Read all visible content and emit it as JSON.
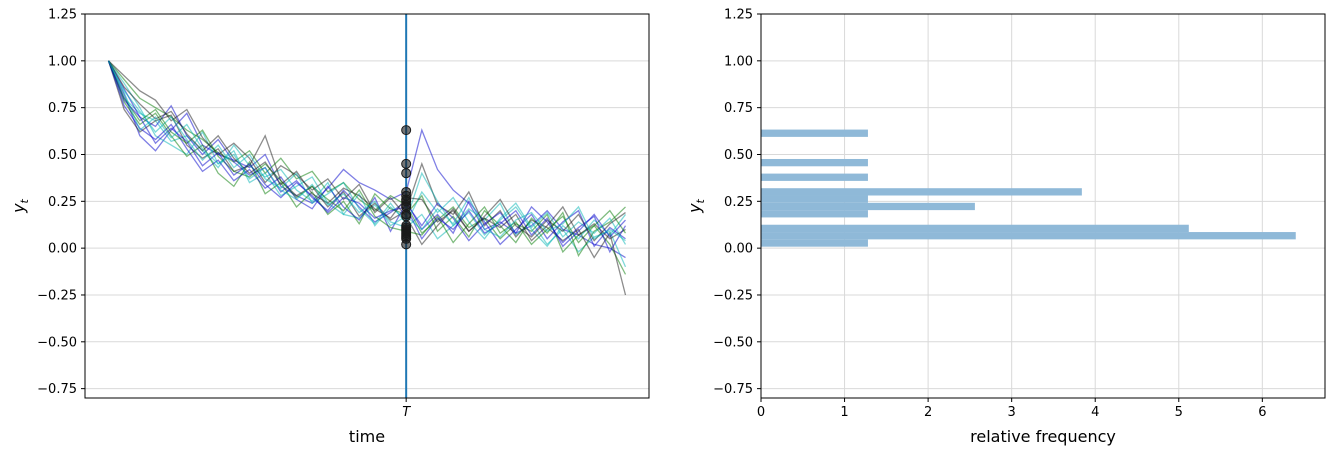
{
  "chart_data": [
    {
      "type": "line",
      "xlabel": "time",
      "ylabel": "y",
      "ylabel_subscript": "t",
      "ylim": [
        -0.8,
        1.25
      ],
      "yticks": [
        -0.75,
        -0.5,
        -0.25,
        0.0,
        0.25,
        0.5,
        0.75,
        1.0,
        1.25
      ],
      "ytick_labels": [
        "−0.75",
        "−0.50",
        "−0.25",
        "0.00",
        "0.25",
        "0.50",
        "0.75",
        "1.00",
        "1.25"
      ],
      "xlim": [
        -1.5,
        34.5
      ],
      "xtick_label": "T",
      "T_index": 19,
      "vline_color": "#1f77b4",
      "grid": "horizontal",
      "series_colors": [
        "#0000cc",
        "#00b3b3",
        "#007a00",
        "#1a1a1a"
      ],
      "series": [
        {
          "values": [
            1.0,
            0.82,
            0.6,
            0.52,
            0.63,
            0.72,
            0.55,
            0.5,
            0.47,
            0.43,
            0.5,
            0.33,
            0.28,
            0.24,
            0.32,
            0.42,
            0.35,
            0.31,
            0.26,
            0.3,
            0.63,
            0.42,
            0.31,
            0.24,
            0.1,
            0.14,
            0.08,
            0.12,
            0.2,
            0.1,
            0.07,
            0.02,
            0.0,
            -0.05
          ]
        },
        {
          "values": [
            1.0,
            0.8,
            0.72,
            0.68,
            0.57,
            0.6,
            0.52,
            0.43,
            0.55,
            0.44,
            0.38,
            0.42,
            0.31,
            0.25,
            0.35,
            0.18,
            0.16,
            0.23,
            0.14,
            0.11,
            0.18,
            0.05,
            0.12,
            0.21,
            0.15,
            0.24,
            0.07,
            0.14,
            0.02,
            0.1,
            -0.02,
            0.06,
            0.09,
            -0.1
          ]
        },
        {
          "values": [
            1.0,
            0.9,
            0.8,
            0.75,
            0.7,
            0.63,
            0.58,
            0.51,
            0.46,
            0.52,
            0.4,
            0.48,
            0.37,
            0.41,
            0.3,
            0.35,
            0.26,
            0.2,
            0.28,
            0.23,
            0.08,
            0.15,
            0.22,
            0.11,
            0.16,
            0.05,
            0.13,
            0.09,
            0.18,
            -0.02,
            0.07,
            0.12,
            0.02,
            -0.14
          ]
        },
        {
          "values": [
            1.0,
            0.74,
            0.62,
            0.68,
            0.71,
            0.55,
            0.48,
            0.53,
            0.41,
            0.44,
            0.6,
            0.36,
            0.28,
            0.33,
            0.22,
            0.3,
            0.17,
            0.24,
            0.15,
            0.2,
            0.45,
            0.23,
            0.18,
            0.3,
            0.12,
            0.2,
            0.06,
            0.15,
            0.11,
            0.04,
            0.1,
            -0.05,
            0.08,
            -0.25
          ]
        },
        {
          "values": [
            1.0,
            0.85,
            0.7,
            0.65,
            0.76,
            0.6,
            0.5,
            0.58,
            0.46,
            0.39,
            0.43,
            0.3,
            0.36,
            0.27,
            0.2,
            0.31,
            0.22,
            0.14,
            0.19,
            0.25,
            0.1,
            0.18,
            0.08,
            0.25,
            0.14,
            0.02,
            0.1,
            0.18,
            0.05,
            0.14,
            0.2,
            0.01,
            0.11,
            0.05
          ]
        },
        {
          "values": [
            1.0,
            0.88,
            0.75,
            0.6,
            0.55,
            0.5,
            0.62,
            0.45,
            0.52,
            0.35,
            0.4,
            0.28,
            0.33,
            0.38,
            0.24,
            0.18,
            0.29,
            0.12,
            0.22,
            0.15,
            0.4,
            0.25,
            0.12,
            0.19,
            0.07,
            0.15,
            0.22,
            0.1,
            0.01,
            0.12,
            0.05,
            0.15,
            0.07,
            0.18
          ]
        },
        {
          "values": [
            1.0,
            0.78,
            0.66,
            0.72,
            0.6,
            0.49,
            0.55,
            0.4,
            0.33,
            0.46,
            0.29,
            0.35,
            0.22,
            0.3,
            0.18,
            0.25,
            0.13,
            0.29,
            0.21,
            0.18,
            0.28,
            0.09,
            0.17,
            0.06,
            0.2,
            0.12,
            0.03,
            0.16,
            0.08,
            0.19,
            -0.04,
            0.09,
            0.14,
            0.22
          ]
        },
        {
          "values": [
            1.0,
            0.92,
            0.84,
            0.79,
            0.68,
            0.74,
            0.59,
            0.5,
            0.56,
            0.48,
            0.35,
            0.44,
            0.39,
            0.31,
            0.37,
            0.26,
            0.34,
            0.19,
            0.27,
            0.17,
            0.02,
            0.12,
            0.21,
            0.09,
            0.16,
            0.11,
            0.18,
            0.04,
            0.12,
            0.22,
            0.07,
            0.13,
            0.05,
            0.1
          ]
        },
        {
          "values": [
            1.0,
            0.76,
            0.64,
            0.58,
            0.66,
            0.53,
            0.41,
            0.47,
            0.36,
            0.42,
            0.32,
            0.38,
            0.26,
            0.21,
            0.33,
            0.22,
            0.15,
            0.27,
            0.09,
            0.24,
            0.12,
            0.24,
            0.16,
            0.04,
            0.13,
            0.19,
            0.08,
            0.22,
            0.14,
            0.03,
            0.11,
            0.17,
            -0.02,
            0.12
          ]
        },
        {
          "values": [
            1.0,
            0.84,
            0.73,
            0.62,
            0.7,
            0.58,
            0.47,
            0.55,
            0.43,
            0.5,
            0.37,
            0.32,
            0.4,
            0.24,
            0.29,
            0.35,
            0.21,
            0.13,
            0.24,
            0.13,
            0.3,
            0.19,
            0.27,
            0.14,
            0.05,
            0.16,
            0.24,
            0.11,
            0.19,
            0.06,
            0.14,
            0.08,
            0.16,
            0.02
          ]
        },
        {
          "values": [
            1.0,
            0.8,
            0.68,
            0.74,
            0.62,
            0.56,
            0.63,
            0.49,
            0.41,
            0.38,
            0.45,
            0.36,
            0.27,
            0.33,
            0.26,
            0.2,
            0.31,
            0.17,
            0.11,
            0.09,
            0.07,
            0.17,
            0.03,
            0.13,
            0.22,
            0.08,
            0.14,
            0.02,
            0.1,
            0.17,
            0.03,
            0.12,
            0.2,
            0.08
          ]
        },
        {
          "values": [
            1.0,
            0.86,
            0.77,
            0.69,
            0.73,
            0.61,
            0.52,
            0.6,
            0.48,
            0.4,
            0.46,
            0.34,
            0.41,
            0.29,
            0.24,
            0.32,
            0.28,
            0.21,
            0.16,
            0.27,
            0.26,
            0.14,
            0.2,
            0.09,
            0.17,
            0.26,
            0.12,
            0.06,
            0.15,
            0.09,
            0.18,
            0.04,
            0.13,
            0.19
          ]
        },
        {
          "values": [
            1.0,
            0.79,
            0.7,
            0.56,
            0.64,
            0.57,
            0.44,
            0.51,
            0.39,
            0.45,
            0.34,
            0.27,
            0.35,
            0.28,
            0.19,
            0.27,
            0.24,
            0.16,
            0.2,
            0.22,
            0.05,
            0.16,
            0.1,
            0.2,
            0.08,
            0.13,
            0.2,
            0.07,
            0.16,
            0.01,
            0.09,
            0.18,
            0.06,
            0.15
          ]
        },
        {
          "values": [
            1.0,
            0.83,
            0.63,
            0.7,
            0.59,
            0.66,
            0.53,
            0.45,
            0.5,
            0.37,
            0.43,
            0.31,
            0.26,
            0.34,
            0.23,
            0.29,
            0.19,
            0.25,
            0.12,
            0.17,
            0.1,
            0.21,
            0.13,
            0.27,
            0.1,
            0.06,
            0.15,
            0.19,
            0.09,
            0.13,
            0.22,
            0.05,
            0.1,
            0.04
          ]
        }
      ],
      "markers_at_T": [
        0.63,
        0.45,
        0.4,
        0.3,
        0.28,
        0.26,
        0.25,
        0.23,
        0.22,
        0.18,
        0.17,
        0.12,
        0.11,
        0.1,
        0.09,
        0.08,
        0.07,
        0.06,
        0.05,
        0.02
      ],
      "marker_color": "#1a1a1a"
    },
    {
      "type": "bar",
      "orientation": "horizontal",
      "xlabel": "relative frequency",
      "ylabel": "y",
      "ylabel_subscript": "t",
      "ylim": [
        -0.8,
        1.25
      ],
      "yticks": [
        -0.75,
        -0.5,
        -0.25,
        0.0,
        0.25,
        0.5,
        0.75,
        1.0,
        1.25
      ],
      "ytick_labels": [
        "−0.75",
        "−0.50",
        "−0.25",
        "0.00",
        "0.25",
        "0.50",
        "0.75",
        "1.00",
        "1.25"
      ],
      "xlim": [
        0,
        6.75
      ],
      "xticks": [
        0,
        1,
        2,
        3,
        4,
        5,
        6
      ],
      "xtick_labels": [
        "0",
        "1",
        "2",
        "3",
        "4",
        "5",
        "6"
      ],
      "grid": "both",
      "bar_color": "#8fb9d8",
      "bins": [
        {
          "y0": 0.0078,
          "y1": 0.0469,
          "value": 1.28
        },
        {
          "y0": 0.0469,
          "y1": 0.0859,
          "value": 6.4
        },
        {
          "y0": 0.0859,
          "y1": 0.125,
          "value": 5.12
        },
        {
          "y0": 0.164,
          "y1": 0.203,
          "value": 1.28
        },
        {
          "y0": 0.203,
          "y1": 0.242,
          "value": 2.56
        },
        {
          "y0": 0.242,
          "y1": 0.281,
          "value": 1.28
        },
        {
          "y0": 0.281,
          "y1": 0.32,
          "value": 3.84
        },
        {
          "y0": 0.359,
          "y1": 0.398,
          "value": 1.28
        },
        {
          "y0": 0.437,
          "y1": 0.476,
          "value": 1.28
        },
        {
          "y0": 0.594,
          "y1": 0.633,
          "value": 1.28
        }
      ]
    }
  ]
}
